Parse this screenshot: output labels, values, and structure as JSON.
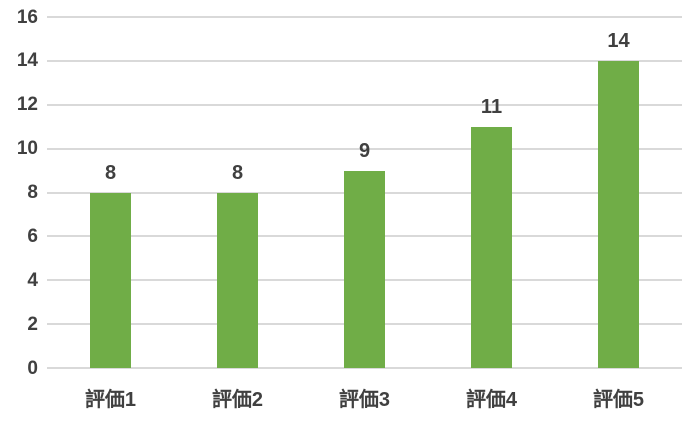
{
  "chart_data": {
    "type": "bar",
    "title": "",
    "xlabel": "",
    "ylabel": "",
    "categories": [
      "評価1",
      "評価2",
      "評価3",
      "評価4",
      "評価5"
    ],
    "values": [
      8,
      8,
      9,
      11,
      14
    ],
    "data_labels": [
      "8",
      "8",
      "9",
      "11",
      "14"
    ],
    "ylim": [
      0,
      16
    ],
    "ytick_step": 2,
    "yticks": [
      "0",
      "2",
      "4",
      "6",
      "8",
      "10",
      "12",
      "14",
      "16"
    ],
    "grid": true,
    "legend_position": "none",
    "colors": {
      "bar_fill": "#70AD47",
      "gridline": "#D9D9D9",
      "text": "#404040",
      "background": "#FFFFFF"
    }
  }
}
